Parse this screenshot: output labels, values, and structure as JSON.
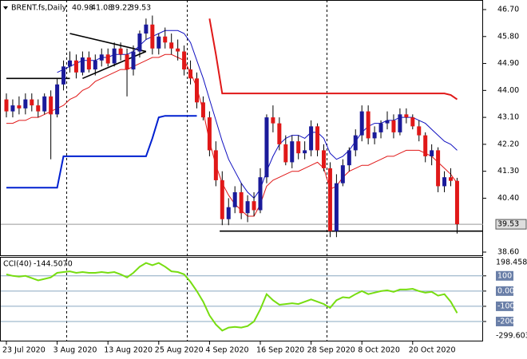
{
  "chart_data": {
    "type": "candlestick",
    "title": "BRENT.fs,Daily",
    "categories": [
      "23 Jul 2020",
      null,
      null,
      null,
      null,
      null,
      null,
      null,
      "3 Aug 2020",
      null,
      null,
      null,
      null,
      null,
      null,
      null,
      "13 Aug 2020",
      null,
      null,
      null,
      null,
      null,
      null,
      null,
      "25 Aug 2020",
      null,
      null,
      null,
      null,
      null,
      null,
      null,
      "4 Sep 2020",
      null,
      null,
      null,
      null,
      null,
      null,
      null,
      "16 Sep 2020",
      null,
      null,
      null,
      null,
      null,
      null,
      null,
      "28 Sep 2020",
      null,
      null,
      null,
      null,
      null,
      null,
      null,
      "8 Oct 2020",
      null,
      null,
      null,
      null,
      null,
      null,
      null,
      "20 Oct 2020",
      null,
      null,
      null,
      null,
      null,
      null,
      null
    ],
    "open": [
      43.7,
      43.3,
      43.5,
      43.4,
      43.7,
      43.5,
      43.3,
      43.8,
      43.2,
      44.2,
      44.8,
      45.0,
      44.6,
      45.1,
      44.7,
      45.0,
      45.2,
      44.9,
      45.4,
      45.2,
      44.7,
      45.3,
      45.9,
      46.2,
      45.4,
      45.8,
      45.6,
      45.4,
      45.3,
      44.7,
      44.4,
      43.6,
      43.1,
      42.0,
      41.0,
      39.7,
      40.1,
      40.6,
      39.9,
      40.3,
      40.0,
      41.1,
      43.1,
      42.9,
      42.2,
      41.6,
      42.3,
      41.9,
      42.0,
      42.8,
      42.0,
      41.4,
      39.3,
      40.9,
      41.5,
      42.0,
      42.5,
      43.3,
      42.4,
      42.6,
      42.9,
      43.0,
      42.6,
      43.2,
      43.1,
      42.8,
      42.5,
      41.8,
      42.0,
      40.8,
      41.1,
      40.98
    ],
    "high": [
      43.9,
      43.7,
      43.8,
      43.9,
      43.9,
      43.7,
      43.9,
      44.0,
      44.4,
      45.0,
      45.3,
      45.2,
      45.3,
      45.3,
      45.2,
      45.4,
      45.4,
      45.6,
      45.6,
      45.4,
      45.5,
      46.0,
      46.4,
      46.5,
      45.9,
      46.1,
      45.9,
      45.7,
      45.5,
      45.0,
      44.6,
      43.8,
      43.3,
      42.3,
      41.3,
      40.4,
      40.8,
      40.9,
      40.5,
      40.6,
      41.4,
      43.2,
      43.5,
      43.1,
      42.5,
      42.5,
      42.5,
      42.3,
      43.0,
      42.9,
      42.2,
      41.6,
      41.2,
      41.7,
      42.1,
      42.7,
      43.5,
      43.5,
      42.8,
      43.0,
      43.3,
      43.2,
      43.4,
      43.4,
      43.2,
      43.0,
      42.6,
      42.2,
      42.1,
      41.3,
      41.4,
      41.08
    ],
    "low": [
      43.1,
      43.1,
      43.2,
      43.2,
      43.3,
      43.1,
      43.2,
      41.7,
      43.1,
      44.0,
      44.6,
      44.4,
      44.5,
      44.6,
      44.5,
      44.8,
      44.8,
      44.8,
      45.0,
      43.8,
      44.5,
      45.1,
      45.7,
      45.2,
      45.2,
      45.4,
      45.2,
      45.0,
      44.5,
      44.2,
      43.4,
      43.0,
      41.8,
      40.8,
      39.5,
      39.5,
      39.9,
      39.7,
      39.6,
      39.8,
      39.9,
      40.9,
      42.6,
      42.0,
      41.5,
      41.4,
      41.7,
      41.7,
      41.8,
      41.8,
      41.3,
      39.1,
      39.1,
      40.8,
      41.3,
      41.8,
      42.3,
      42.2,
      42.2,
      42.4,
      42.7,
      42.4,
      42.5,
      42.9,
      42.7,
      42.3,
      41.6,
      41.5,
      40.6,
      40.6,
      40.8,
      39.22
    ],
    "close": [
      43.3,
      43.5,
      43.4,
      43.7,
      43.5,
      43.3,
      43.8,
      43.2,
      44.2,
      44.8,
      45.0,
      44.6,
      45.1,
      44.7,
      45.0,
      45.2,
      44.9,
      45.4,
      45.2,
      44.7,
      45.3,
      45.9,
      46.2,
      45.4,
      45.8,
      45.6,
      45.4,
      45.3,
      44.7,
      44.4,
      43.6,
      43.1,
      42.0,
      41.0,
      39.7,
      40.1,
      40.6,
      39.9,
      40.3,
      40.0,
      41.1,
      43.1,
      42.9,
      42.2,
      41.6,
      42.3,
      41.9,
      42.0,
      42.8,
      42.0,
      41.4,
      39.3,
      40.9,
      41.5,
      42.0,
      42.5,
      43.3,
      42.4,
      42.6,
      42.9,
      43.0,
      42.6,
      43.2,
      43.1,
      42.8,
      42.5,
      41.8,
      42.0,
      40.8,
      41.1,
      40.98,
      39.53
    ],
    "up_color": "#1a1a9a",
    "down_color": "#e01818",
    "wick_color": "#000000",
    "series": [
      {
        "color": "#1010c0",
        "values": [
          null,
          null,
          null,
          null,
          null,
          null,
          null,
          null,
          44.6,
          44.7,
          44.8,
          44.9,
          45.0,
          45.0,
          45.0,
          45.1,
          45.1,
          45.2,
          45.2,
          45.2,
          45.3,
          45.5,
          45.7,
          45.8,
          45.9,
          46.0,
          46.0,
          46.0,
          45.9,
          45.6,
          45.0,
          44.4,
          43.7,
          43.0,
          42.3,
          41.7,
          41.3,
          40.9,
          40.6,
          40.4,
          40.7,
          41.3,
          41.8,
          42.2,
          42.4,
          42.5,
          42.5,
          42.4,
          42.6,
          42.6,
          42.4,
          41.9,
          41.7,
          41.8,
          42.0,
          42.3,
          42.6,
          42.8,
          42.9,
          42.9,
          43.0,
          43.0,
          43.1,
          43.1,
          43.1,
          43.0,
          42.9,
          42.7,
          42.5,
          42.3,
          42.2,
          42.0
        ]
      },
      {
        "color": "#e01818",
        "values": [
          42.9,
          42.9,
          43.0,
          43.0,
          43.1,
          43.1,
          43.2,
          43.3,
          43.4,
          43.5,
          43.7,
          43.8,
          44.0,
          44.1,
          44.3,
          44.4,
          44.5,
          44.6,
          44.7,
          44.7,
          44.8,
          44.9,
          45.0,
          45.1,
          45.1,
          45.2,
          45.2,
          45.1,
          45.0,
          44.6,
          44.1,
          43.3,
          42.3,
          41.5,
          40.9,
          40.5,
          40.2,
          40.0,
          39.8,
          39.8,
          40.2,
          40.8,
          41.0,
          41.1,
          41.2,
          41.3,
          41.3,
          41.4,
          41.5,
          41.6,
          41.4,
          40.7,
          40.8,
          41.1,
          41.3,
          41.4,
          41.5,
          41.5,
          41.6,
          41.7,
          41.8,
          41.8,
          41.9,
          42.0,
          42.0,
          42.0,
          41.9,
          41.8,
          41.6,
          41.4,
          41.2,
          40.9
        ]
      },
      {
        "color": "#0020d0",
        "thick": true,
        "values": [
          40.75,
          40.75,
          40.75,
          40.75,
          40.75,
          40.75,
          40.75,
          40.75,
          40.75,
          41.8,
          41.8,
          41.8,
          41.8,
          41.8,
          41.8,
          41.8,
          41.8,
          41.8,
          41.8,
          41.8,
          41.8,
          41.8,
          41.8,
          42.4,
          43.1,
          43.15,
          43.15,
          43.15,
          43.15,
          43.15,
          43.15,
          null,
          null,
          null,
          null,
          null,
          null,
          null,
          null,
          null,
          null,
          null,
          null,
          null,
          null,
          null,
          null,
          null,
          null,
          null,
          null,
          null,
          null,
          null,
          null,
          null,
          null,
          null,
          null,
          null,
          null,
          null,
          null,
          null,
          null,
          null,
          null,
          null,
          null,
          null,
          null,
          null
        ]
      },
      {
        "color": "#e01818",
        "thick": true,
        "values": [
          null,
          null,
          null,
          null,
          null,
          null,
          null,
          null,
          null,
          null,
          null,
          null,
          null,
          null,
          null,
          null,
          null,
          null,
          null,
          null,
          null,
          null,
          null,
          null,
          null,
          null,
          null,
          null,
          null,
          null,
          null,
          null,
          46.4,
          45.2,
          43.9,
          43.9,
          43.9,
          43.9,
          43.9,
          43.9,
          43.9,
          43.9,
          43.9,
          43.9,
          43.9,
          43.9,
          43.9,
          43.9,
          43.9,
          43.9,
          43.9,
          43.9,
          43.9,
          43.9,
          43.9,
          43.9,
          43.9,
          43.9,
          43.9,
          43.9,
          43.9,
          43.9,
          43.9,
          43.9,
          43.9,
          43.9,
          43.9,
          43.9,
          43.9,
          43.9,
          43.85,
          43.7
        ]
      }
    ],
    "trend_lines": [
      {
        "x": [
          0,
          10
        ],
        "y": [
          44.4,
          44.4
        ]
      },
      {
        "x": [
          10,
          22
        ],
        "y": [
          45.9,
          45.3
        ]
      },
      {
        "x": [
          12,
          22
        ],
        "y": [
          44.4,
          45.3
        ]
      },
      {
        "x": [
          33.6,
          75
        ],
        "y": [
          39.3,
          39.3
        ]
      }
    ],
    "period_separators": [
      9.5,
      28.5,
      50.5
    ],
    "ylim": [
      38.6,
      46.7
    ],
    "yticks": [
      {
        "value": 46.7,
        "label": "46.70"
      },
      {
        "value": 45.8,
        "label": "45.80"
      },
      {
        "value": 44.9,
        "label": "44.90"
      },
      {
        "value": 44.0,
        "label": "44.00"
      },
      {
        "value": 43.1,
        "label": "43.10"
      },
      {
        "value": 42.2,
        "label": "42.20"
      },
      {
        "value": 41.3,
        "label": "41.30"
      },
      {
        "value": 40.4,
        "label": "40.40"
      },
      {
        "value": 38.6,
        "label": "38.60"
      }
    ],
    "cci": {
      "name": "CCI(40)",
      "current_label": "-144.5070",
      "color": "#77dd11",
      "values": [
        110,
        100,
        95,
        100,
        85,
        70,
        80,
        90,
        120,
        125,
        130,
        120,
        125,
        120,
        120,
        125,
        120,
        125,
        110,
        90,
        120,
        160,
        185,
        170,
        185,
        160,
        130,
        125,
        110,
        60,
        0,
        -70,
        -160,
        -220,
        -260,
        -240,
        -235,
        -240,
        -230,
        -200,
        -120,
        -20,
        -60,
        -90,
        -85,
        -80,
        -85,
        -70,
        -55,
        -70,
        -85,
        -110,
        -60,
        -40,
        -45,
        -20,
        0,
        -20,
        -10,
        0,
        5,
        -5,
        10,
        10,
        15,
        0,
        -10,
        -5,
        -30,
        -20,
        -70,
        -144.507
      ],
      "ylim": [
        -299.603,
        198.4581
      ],
      "yticks": [
        100,
        {
          "value": 0,
          "label": "0.00"
        },
        -100,
        -200
      ]
    }
  }
}
